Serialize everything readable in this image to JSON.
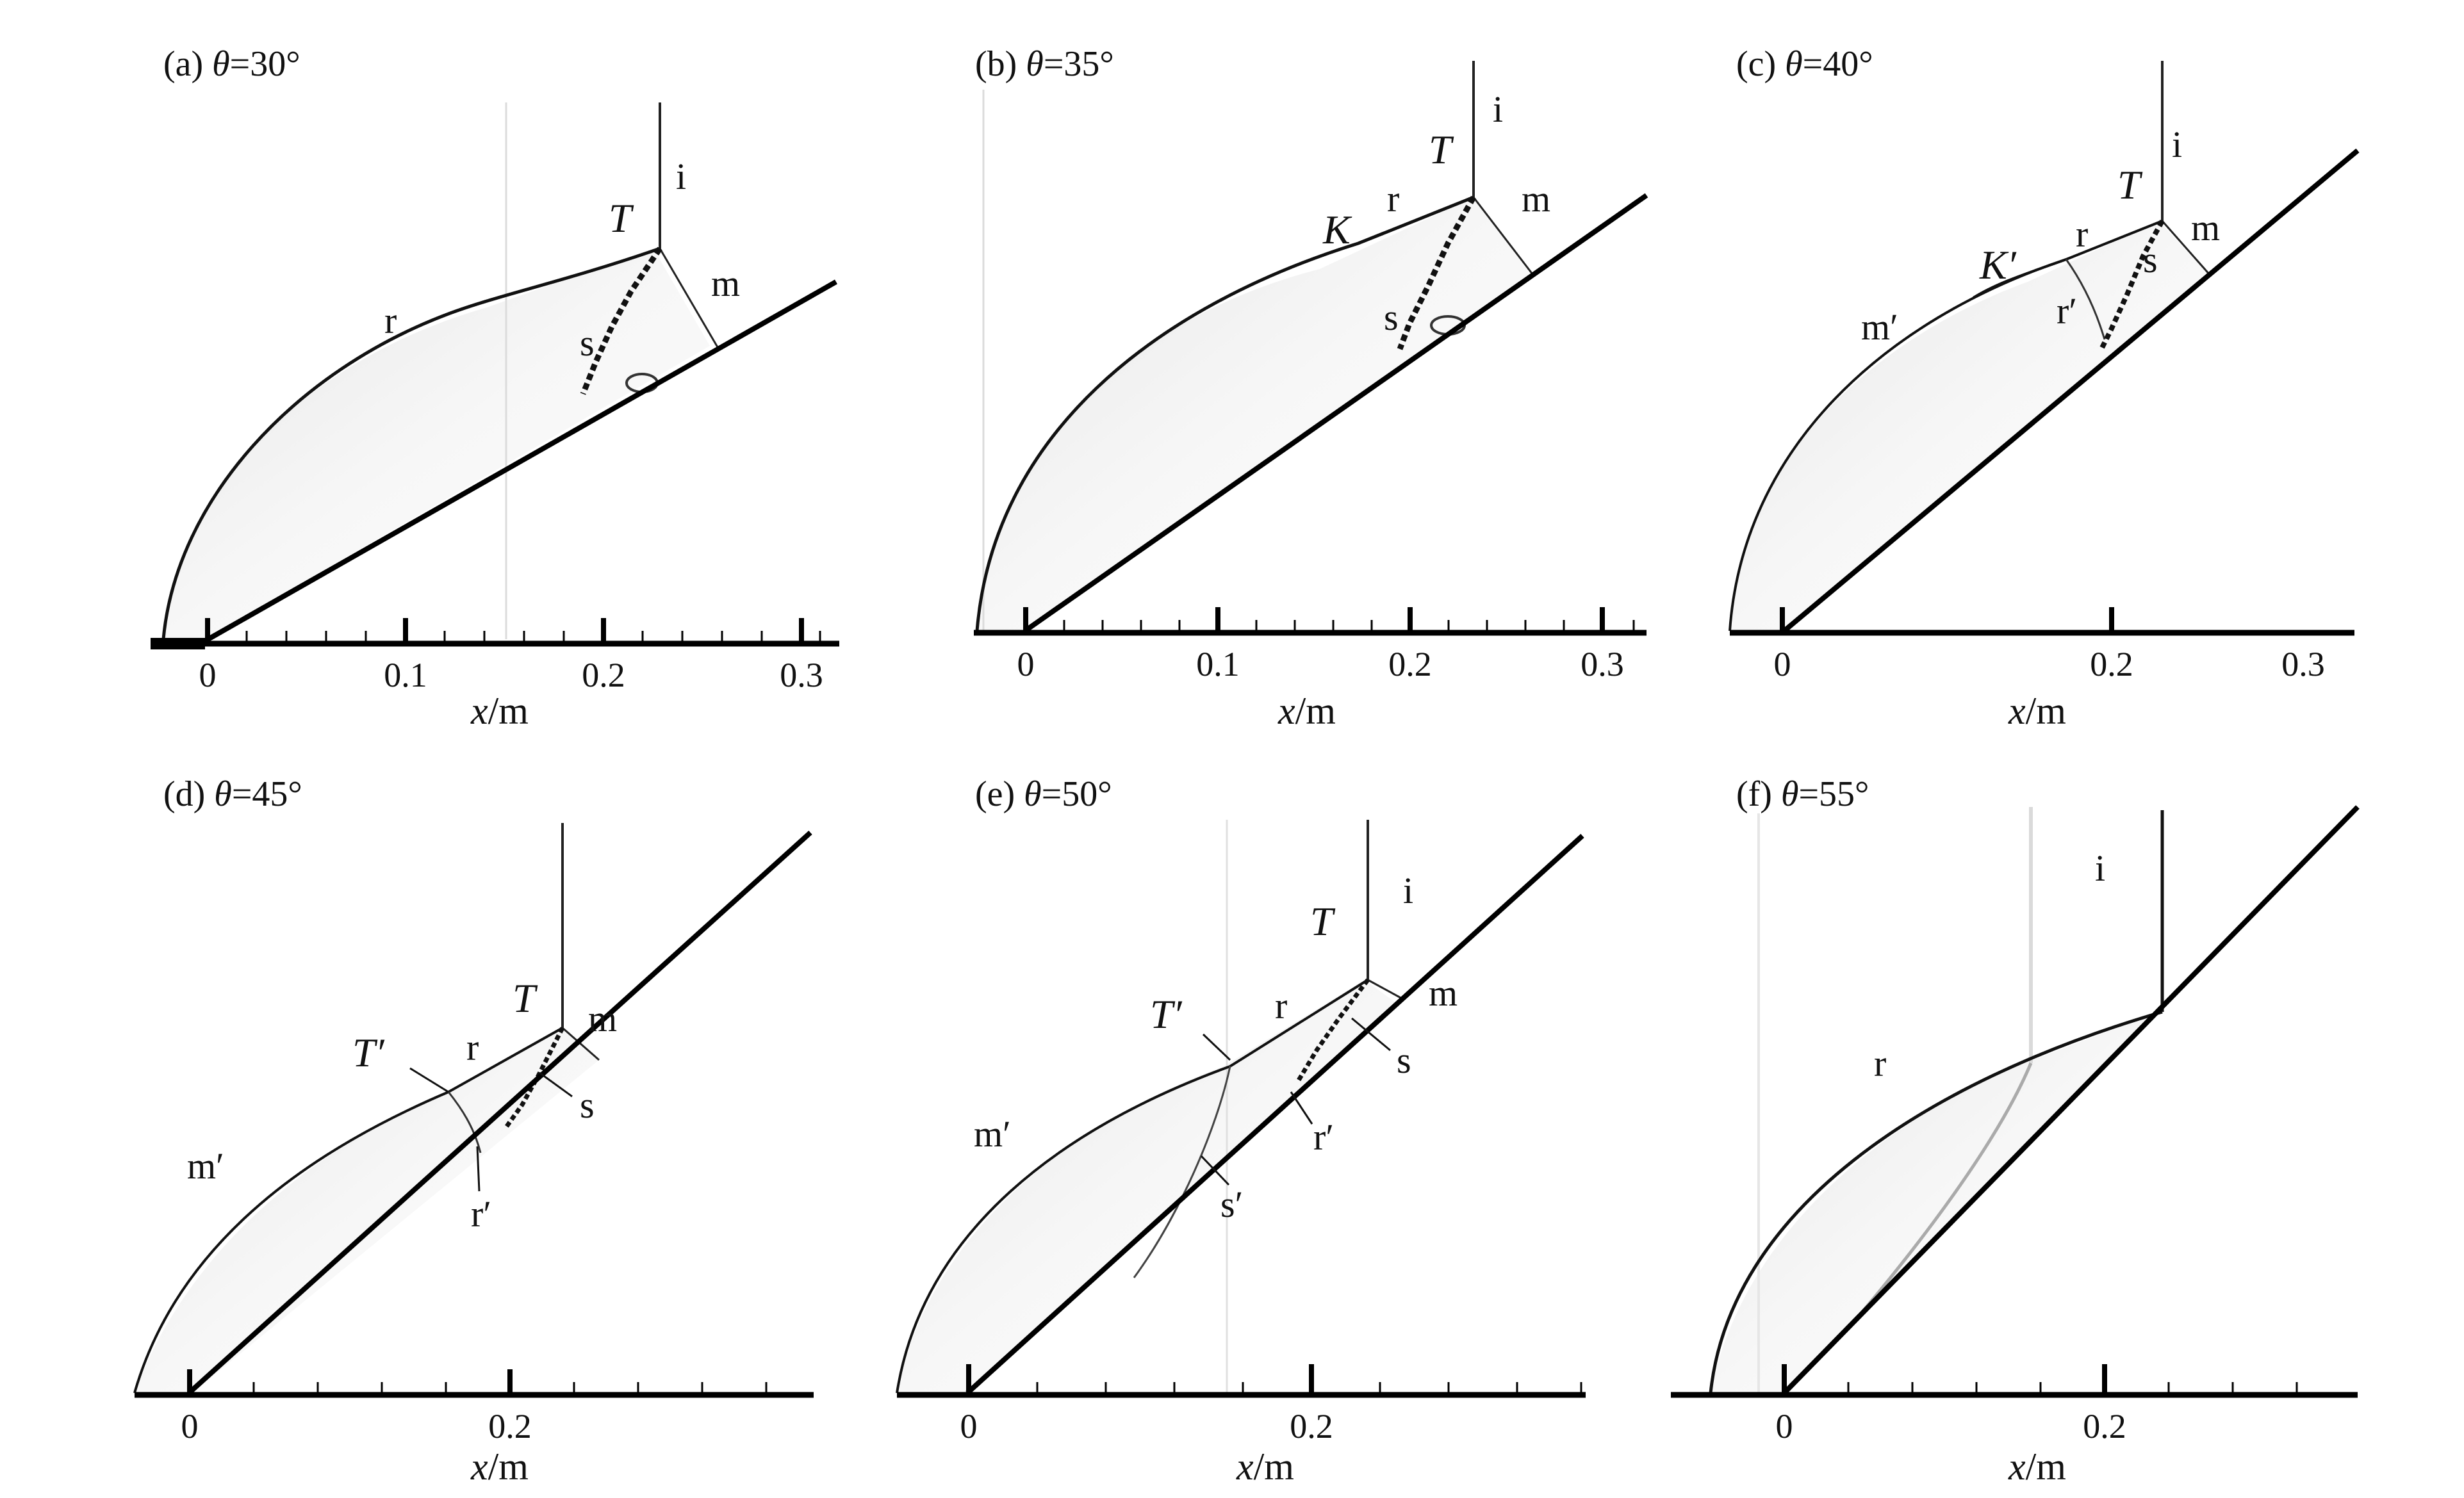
{
  "panels": [
    {
      "key": "a",
      "prefix": "(a) ",
      "theta": "θ",
      "eq": "=30°",
      "angle_deg": 30,
      "tick_labels": [
        "0",
        "0.1",
        "0.2",
        "0.3"
      ],
      "xlabel_var": "x",
      "xlabel_unit": "/m",
      "labels": [
        {
          "id": "T",
          "text": "T",
          "italic": true
        },
        {
          "id": "i",
          "text": "i"
        },
        {
          "id": "m",
          "text": "m"
        },
        {
          "id": "r",
          "text": "r"
        },
        {
          "id": "s",
          "text": "s"
        }
      ]
    },
    {
      "key": "b",
      "prefix": "(b) ",
      "theta": "θ",
      "eq": "=35°",
      "angle_deg": 35,
      "tick_labels": [
        "0",
        "0.1",
        "0.2",
        "0.3"
      ],
      "xlabel_var": "x",
      "xlabel_unit": "/m",
      "labels": [
        {
          "id": "T",
          "text": "T",
          "italic": true
        },
        {
          "id": "i",
          "text": "i"
        },
        {
          "id": "m",
          "text": "m"
        },
        {
          "id": "K",
          "text": "K",
          "italic": true
        },
        {
          "id": "r",
          "text": "r"
        },
        {
          "id": "s",
          "text": "s"
        }
      ]
    },
    {
      "key": "c",
      "prefix": "(c) ",
      "theta": "θ",
      "eq": "=40°",
      "angle_deg": 40,
      "tick_labels": [
        "0",
        "0.2",
        "0.3"
      ],
      "xlabel_var": "x",
      "xlabel_unit": "/m",
      "labels": [
        {
          "id": "T",
          "text": "T",
          "italic": true
        },
        {
          "id": "i",
          "text": "i"
        },
        {
          "id": "m",
          "text": "m"
        },
        {
          "id": "K'",
          "text": "K′",
          "italic": true
        },
        {
          "id": "r",
          "text": "r"
        },
        {
          "id": "s",
          "text": "s"
        },
        {
          "id": "r'",
          "text": "r′"
        },
        {
          "id": "m'",
          "text": "m′"
        }
      ]
    },
    {
      "key": "d",
      "prefix": "(d) ",
      "theta": "θ",
      "eq": "=45°",
      "angle_deg": 45,
      "tick_labels": [
        "0",
        "0.2"
      ],
      "xlabel_var": "x",
      "xlabel_unit": "/m",
      "labels": [
        {
          "id": "T",
          "text": "T",
          "italic": true
        },
        {
          "id": "m",
          "text": "m"
        },
        {
          "id": "T'",
          "text": "T′",
          "italic": true
        },
        {
          "id": "r",
          "text": "r"
        },
        {
          "id": "s",
          "text": "s"
        },
        {
          "id": "m'",
          "text": "m′"
        },
        {
          "id": "r'",
          "text": "r′"
        }
      ]
    },
    {
      "key": "e",
      "prefix": "(e) ",
      "theta": "θ",
      "eq": "=50°",
      "angle_deg": 50,
      "tick_labels": [
        "0",
        "0.2"
      ],
      "xlabel_var": "x",
      "xlabel_unit": "/m",
      "labels": [
        {
          "id": "T",
          "text": "T",
          "italic": true
        },
        {
          "id": "i",
          "text": "i"
        },
        {
          "id": "m",
          "text": "m"
        },
        {
          "id": "T'",
          "text": "T′",
          "italic": true
        },
        {
          "id": "r",
          "text": "r"
        },
        {
          "id": "s",
          "text": "s"
        },
        {
          "id": "r'",
          "text": "r′"
        },
        {
          "id": "m'",
          "text": "m′"
        },
        {
          "id": "s'",
          "text": "s′"
        }
      ]
    },
    {
      "key": "f",
      "prefix": "(f) ",
      "theta": "θ",
      "eq": "=55°",
      "angle_deg": 55,
      "tick_labels": [
        "0",
        "0.2"
      ],
      "xlabel_var": "x",
      "xlabel_unit": "/m",
      "labels": [
        {
          "id": "i",
          "text": "i"
        },
        {
          "id": "r",
          "text": "r"
        }
      ]
    }
  ]
}
